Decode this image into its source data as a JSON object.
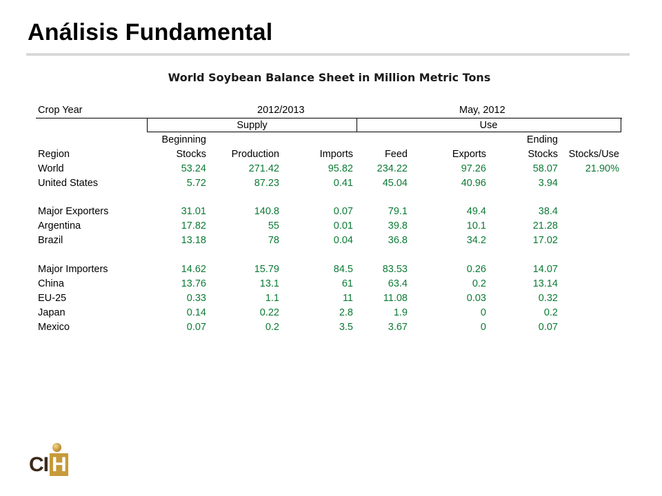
{
  "slide": {
    "title": "Análisis Fundamental",
    "table_title": "World Soybean Balance Sheet in Million Metric Tons"
  },
  "header": {
    "crop_year_label": "Crop Year",
    "crop_year_value": "2012/2013",
    "report_date": "May, 2012",
    "supply": "Supply",
    "use": "Use",
    "beginning": "Beginning",
    "ending": "Ending",
    "columns": [
      "Region",
      "Stocks",
      "Production",
      "Imports",
      "Feed",
      "Exports",
      "Stocks",
      "Stocks/Use"
    ]
  },
  "rows": [
    {
      "region": "World",
      "beg_stocks": "53.24",
      "production": "271.42",
      "imports": "95.82",
      "feed": "234.22",
      "exports": "97.26",
      "end_stocks": "58.07",
      "stocks_use": "21.90%"
    },
    {
      "region": "United States",
      "beg_stocks": "5.72",
      "production": "87.23",
      "imports": "0.41",
      "feed": "45.04",
      "exports": "40.96",
      "end_stocks": "3.94",
      "stocks_use": ""
    },
    {
      "region": "Major Exporters",
      "beg_stocks": "31.01",
      "production": "140.8",
      "imports": "0.07",
      "feed": "79.1",
      "exports": "49.4",
      "end_stocks": "38.4",
      "stocks_use": ""
    },
    {
      "region": "Argentina",
      "beg_stocks": "17.82",
      "production": "55",
      "imports": "0.01",
      "feed": "39.8",
      "exports": "10.1",
      "end_stocks": "21.28",
      "stocks_use": ""
    },
    {
      "region": "Brazil",
      "beg_stocks": "13.18",
      "production": "78",
      "imports": "0.04",
      "feed": "36.8",
      "exports": "34.2",
      "end_stocks": "17.02",
      "stocks_use": ""
    },
    {
      "region": "Major Importers",
      "beg_stocks": "14.62",
      "production": "15.79",
      "imports": "84.5",
      "feed": "83.53",
      "exports": "0.26",
      "end_stocks": "14.07",
      "stocks_use": ""
    },
    {
      "region": "China",
      "beg_stocks": "13.76",
      "production": "13.1",
      "imports": "61",
      "feed": "63.4",
      "exports": "0.2",
      "end_stocks": "13.14",
      "stocks_use": ""
    },
    {
      "region": "EU-25",
      "beg_stocks": "0.33",
      "production": "1.1",
      "imports": "11",
      "feed": "11.08",
      "exports": "0.03",
      "end_stocks": "0.32",
      "stocks_use": ""
    },
    {
      "region": "Japan",
      "beg_stocks": "0.14",
      "production": "0.22",
      "imports": "2.8",
      "feed": "1.9",
      "exports": "0",
      "end_stocks": "0.2",
      "stocks_use": ""
    },
    {
      "region": "Mexico",
      "beg_stocks": "0.07",
      "production": "0.2",
      "imports": "3.5",
      "feed": "3.67",
      "exports": "0",
      "end_stocks": "0.07",
      "stocks_use": ""
    }
  ],
  "logo": {
    "text_c": "C",
    "text_i": "I",
    "text_h": "H"
  },
  "colors": {
    "value_green": "#0b7a34",
    "rule_gray": "#d9d9d9",
    "logo_gold": "#c79a3a"
  }
}
